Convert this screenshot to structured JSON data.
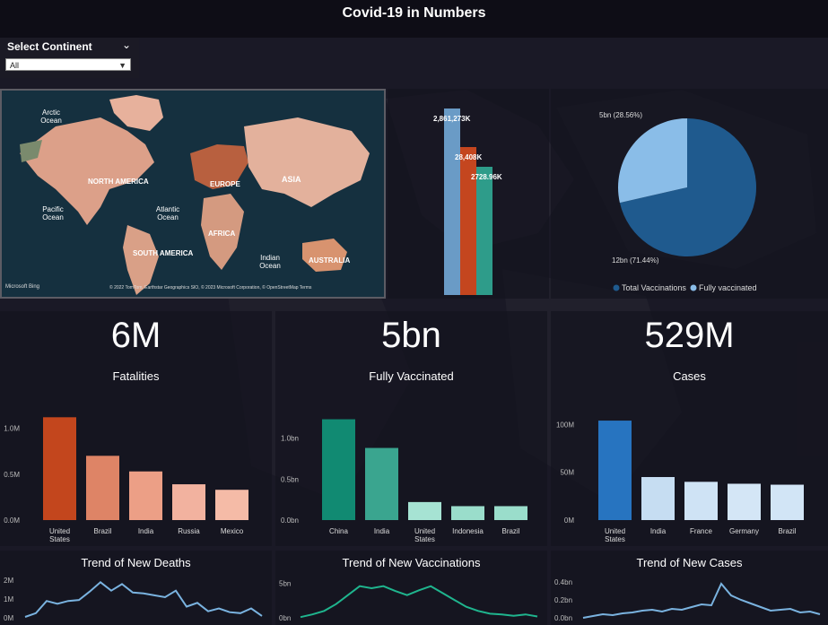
{
  "header": {
    "title": "Covid-19 in Numbers"
  },
  "slicer": {
    "label": "Select Continent",
    "value": "All"
  },
  "map": {
    "labels": [
      "Arctic Ocean",
      "NORTH AMERICA",
      "Pacific Ocean",
      "Atlantic Ocean",
      "EUROPE",
      "ASIA",
      "AFRICA",
      "SOUTH AMERICA",
      "Indian Ocean",
      "AUSTRALIA"
    ],
    "brand": "Microsoft Bing",
    "credit": "© 2022 TomTom, Earthstar Geographics SIO, © 2023 Microsoft Corporation, © OpenStreetMap  Terms"
  },
  "kpis": [
    {
      "value": "6M",
      "label": "Fatalities"
    },
    {
      "value": "5bn",
      "label": "Fully Vaccinated"
    },
    {
      "value": "529M",
      "label": "Cases"
    }
  ],
  "colors": {
    "fatal": "#c3461d",
    "vacc": "#118a72",
    "cases": "#2774c0",
    "trend_blue": "#7ab3e0",
    "trend_green": "#1fb58e"
  },
  "chart_data": [
    {
      "id": "summary-bars",
      "type": "bar",
      "data_labels": [
        "2,861,273K",
        "28,408K",
        "2728.96K"
      ],
      "values": [
        2861273,
        28408,
        2728.96
      ],
      "colors": [
        "#6a9bc6",
        "#c4461f",
        "#2e9c8a"
      ]
    },
    {
      "id": "vaccination-pie",
      "type": "pie",
      "slices": [
        {
          "name": "Total Vaccinations",
          "value": 71.44,
          "label": "12bn (71.44%)",
          "color": "#1f5a8e"
        },
        {
          "name": "Fully vaccinated",
          "value": 28.56,
          "label": "5bn (28.56%)",
          "color": "#8abde8"
        }
      ],
      "legend": "bottom"
    },
    {
      "id": "fatalities-bars",
      "type": "bar",
      "categories": [
        "United States",
        "Brazil",
        "India",
        "Russia",
        "Mexico"
      ],
      "values": [
        1.12,
        0.7,
        0.53,
        0.39,
        0.33
      ],
      "colors": [
        "#c3461d",
        "#de8466",
        "#ec9f86",
        "#f2b29f",
        "#f5bba7"
      ],
      "yticks": [
        {
          "v": 0,
          "label": "0.0M"
        },
        {
          "v": 0.5,
          "label": "0.5M"
        },
        {
          "v": 1.0,
          "label": "1.0M"
        }
      ],
      "ylim": [
        0,
        1.25
      ]
    },
    {
      "id": "vaccinated-bars",
      "type": "bar",
      "categories": [
        "China",
        "India",
        "United States",
        "Indonesia",
        "Brazil"
      ],
      "values": [
        1.23,
        0.88,
        0.22,
        0.17,
        0.17
      ],
      "colors": [
        "#118a72",
        "#3aa58f",
        "#a6e3d3",
        "#9addcb",
        "#9addcb"
      ],
      "yticks": [
        {
          "v": 0,
          "label": "0.0bn"
        },
        {
          "v": 0.5,
          "label": "0.5bn"
        },
        {
          "v": 1.0,
          "label": "1.0bn"
        }
      ],
      "ylim": [
        0,
        1.4
      ]
    },
    {
      "id": "cases-bars",
      "type": "bar",
      "categories": [
        "United States",
        "India",
        "France",
        "Germany",
        "Brazil"
      ],
      "values": [
        104,
        45,
        40,
        38,
        37
      ],
      "colors": [
        "#2774c0",
        "#c6ddf2",
        "#cfe3f5",
        "#d4e6f6",
        "#d2e5f6"
      ],
      "yticks": [
        {
          "v": 0,
          "label": "0M"
        },
        {
          "v": 50,
          "label": "50M"
        },
        {
          "v": 100,
          "label": "100M"
        }
      ],
      "ylim": [
        0,
        120
      ]
    },
    {
      "id": "trend-deaths",
      "type": "line",
      "title": "Trend of New Deaths",
      "values": [
        0.05,
        0.25,
        0.9,
        0.75,
        0.9,
        0.95,
        1.4,
        1.9,
        1.45,
        1.8,
        1.35,
        1.3,
        1.2,
        1.1,
        1.45,
        0.6,
        0.8,
        0.35,
        0.5,
        0.3,
        0.25,
        0.5,
        0.1
      ],
      "yticks": [
        {
          "v": 0,
          "label": "0M"
        },
        {
          "v": 1,
          "label": "1M"
        },
        {
          "v": 2,
          "label": "2M"
        }
      ],
      "ylim": [
        0,
        2.2
      ],
      "color": "#7ab3e0"
    },
    {
      "id": "trend-vaccinations",
      "type": "line",
      "title": "Trend of New Vaccinations",
      "values": [
        0.1,
        0.5,
        1.0,
        2.0,
        3.3,
        4.6,
        4.3,
        4.6,
        3.9,
        3.3,
        4.0,
        4.6,
        3.6,
        2.6,
        1.6,
        1.0,
        0.6,
        0.5,
        0.3,
        0.5,
        0.2
      ],
      "yticks": [
        {
          "v": 0,
          "label": "0bn"
        },
        {
          "v": 5,
          "label": "5bn"
        }
      ],
      "ylim": [
        0,
        6
      ],
      "color": "#1fb58e"
    },
    {
      "id": "trend-cases",
      "type": "line",
      "title": "Trend of New Cases",
      "values": [
        0.0,
        0.02,
        0.04,
        0.03,
        0.05,
        0.06,
        0.08,
        0.09,
        0.07,
        0.1,
        0.09,
        0.12,
        0.15,
        0.14,
        0.38,
        0.25,
        0.2,
        0.16,
        0.12,
        0.08,
        0.09,
        0.1,
        0.06,
        0.07,
        0.04
      ],
      "yticks": [
        {
          "v": 0,
          "label": "0.0bn"
        },
        {
          "v": 0.2,
          "label": "0.2bn"
        },
        {
          "v": 0.4,
          "label": "0.4bn"
        }
      ],
      "ylim": [
        0,
        0.46
      ],
      "color": "#7ab3e0"
    }
  ]
}
